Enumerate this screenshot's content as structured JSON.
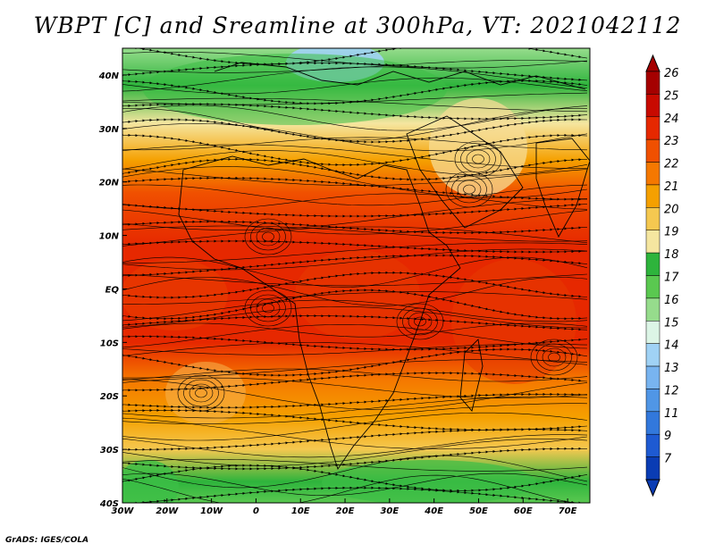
{
  "title": "WBPT [C] and Sreamline at 300hPa, VT: 2021042112",
  "credit": "GrADS: IGES/COLA",
  "map": {
    "lon_ticks": [
      "30W",
      "20W",
      "10W",
      "0",
      "10E",
      "20E",
      "30E",
      "40E",
      "50E",
      "60E",
      "70E"
    ],
    "lat_ticks": [
      "40N",
      "30N",
      "20N",
      "10N",
      "EQ",
      "10S",
      "20S",
      "30S",
      "40S"
    ],
    "lon_range": [
      -30,
      75
    ],
    "lat_range": [
      -40,
      45
    ],
    "field_bands": [
      {
        "lat": 45,
        "value": 15.5
      },
      {
        "lat": 38,
        "value": 17.0
      },
      {
        "lat": 31,
        "value": 18.5
      },
      {
        "lat": 24,
        "value": 20.5
      },
      {
        "lat": 18,
        "value": 22.5
      },
      {
        "lat": 8,
        "value": 23.2
      },
      {
        "lat": 0,
        "value": 23.5
      },
      {
        "lat": -10,
        "value": 23.0
      },
      {
        "lat": -17,
        "value": 21.8
      },
      {
        "lat": -24,
        "value": 20.3
      },
      {
        "lat": -30,
        "value": 19.0
      },
      {
        "lat": -36,
        "value": 17.3
      },
      {
        "lat": -40,
        "value": 16.5
      }
    ]
  },
  "colorbar": {
    "labels": [
      "26",
      "25",
      "24",
      "23",
      "22",
      "21",
      "20",
      "19",
      "18",
      "17",
      "16",
      "15",
      "14",
      "13",
      "12",
      "11",
      "9",
      "7"
    ],
    "colors": [
      "#a50000",
      "#c80a00",
      "#e62800",
      "#f05000",
      "#f57800",
      "#f5a000",
      "#f5c850",
      "#f5e6a0",
      "#2eb43c",
      "#5ac850",
      "#96dc8c",
      "#dcf5e6",
      "#a0d2f5",
      "#78b4f0",
      "#5096e6",
      "#3278dc",
      "#1e5ad2",
      "#0a3cb4"
    ]
  }
}
